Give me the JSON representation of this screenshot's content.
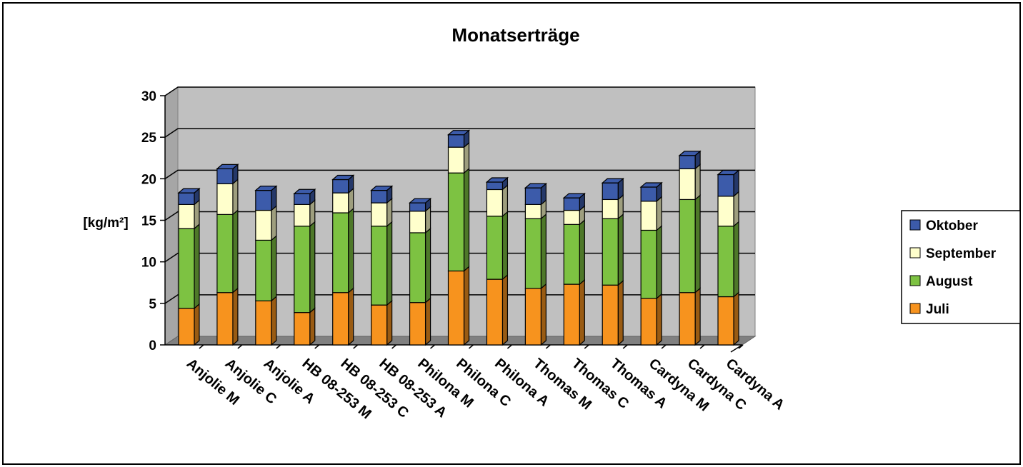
{
  "chart_data": {
    "type": "bar",
    "stacked": true,
    "title": "Monatserträge",
    "ylabel": "[kg/m²]",
    "ylim": [
      0,
      30
    ],
    "yticks": [
      "0",
      "5",
      "10",
      "15",
      "20",
      "25",
      "30"
    ],
    "grid": true,
    "legend_position": "right",
    "categories": [
      "Anjolie M",
      "Anjolie C",
      "Anjolie A",
      "HB 08-253 M",
      "HB 08-253 C",
      "HB 08-253 A",
      "Philona M",
      "Philona C",
      "Philona A",
      "Thomas M",
      "Thomas C",
      "Thomas A",
      "Cardyna M",
      "Cardyna C",
      "Cardyna A"
    ],
    "series": [
      {
        "name": "Juli",
        "color": "#F7931E",
        "values": [
          4.4,
          6.3,
          5.3,
          3.9,
          6.3,
          4.8,
          5.1,
          8.9,
          7.9,
          6.8,
          7.3,
          7.2,
          5.6,
          6.3,
          5.8
        ]
      },
      {
        "name": "August",
        "color": "#7DC242",
        "values": [
          9.6,
          9.4,
          7.3,
          10.4,
          9.6,
          9.5,
          8.4,
          11.8,
          7.6,
          8.4,
          7.2,
          8.0,
          8.2,
          11.2,
          8.5
        ]
      },
      {
        "name": "September",
        "color": "#FFFFCC",
        "values": [
          2.9,
          3.7,
          3.6,
          2.6,
          2.4,
          2.8,
          2.6,
          3.1,
          3.2,
          1.7,
          1.7,
          2.3,
          3.5,
          3.7,
          3.6
        ]
      },
      {
        "name": "Oktober",
        "color": "#3C5BAA",
        "values": [
          1.4,
          1.8,
          2.4,
          1.3,
          1.6,
          1.5,
          1.0,
          1.5,
          0.9,
          2.0,
          1.5,
          2.0,
          1.7,
          1.6,
          2.6
        ]
      }
    ]
  }
}
